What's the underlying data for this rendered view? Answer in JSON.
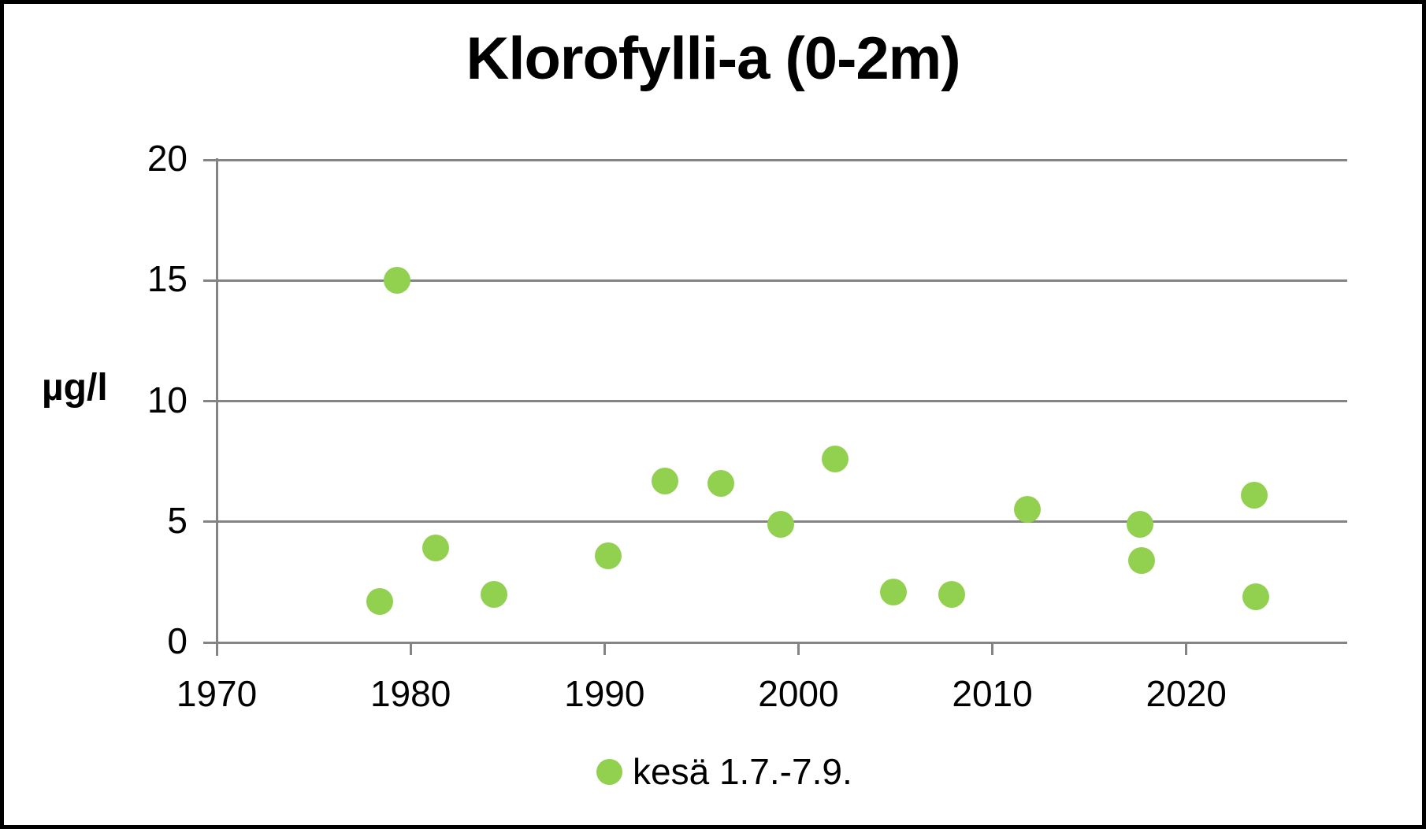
{
  "frame": {
    "border_color": "#000000",
    "background": "#ffffff"
  },
  "chart_data": {
    "type": "scatter",
    "title": "Klorofylli-a (0-2m)",
    "ylabel": "µg/l",
    "xlabel": "",
    "xlim": [
      1970,
      2028.3
    ],
    "ylim": [
      0,
      20
    ],
    "x_ticks": [
      1970,
      1980,
      1990,
      2000,
      2010,
      2020
    ],
    "y_ticks": [
      0,
      5,
      10,
      15,
      20
    ],
    "grid": "horizontal",
    "grid_color": "#848484",
    "legend_position": "bottom",
    "series": [
      {
        "name": "kesä 1.7.-7.9.",
        "color": "#92D050",
        "points": [
          {
            "x": 1978.4,
            "y": 1.7
          },
          {
            "x": 1979.3,
            "y": 15.0
          },
          {
            "x": 1981.3,
            "y": 3.9
          },
          {
            "x": 1984.3,
            "y": 2.0
          },
          {
            "x": 1990.2,
            "y": 3.6
          },
          {
            "x": 1993.1,
            "y": 6.7
          },
          {
            "x": 1996.0,
            "y": 6.6
          },
          {
            "x": 1999.1,
            "y": 4.9
          },
          {
            "x": 2001.9,
            "y": 7.6
          },
          {
            "x": 2004.9,
            "y": 2.1
          },
          {
            "x": 2007.9,
            "y": 2.0
          },
          {
            "x": 2011.8,
            "y": 5.5
          },
          {
            "x": 2017.6,
            "y": 4.9
          },
          {
            "x": 2017.7,
            "y": 3.4
          },
          {
            "x": 2023.5,
            "y": 6.1
          },
          {
            "x": 2023.6,
            "y": 1.9
          }
        ]
      }
    ]
  }
}
